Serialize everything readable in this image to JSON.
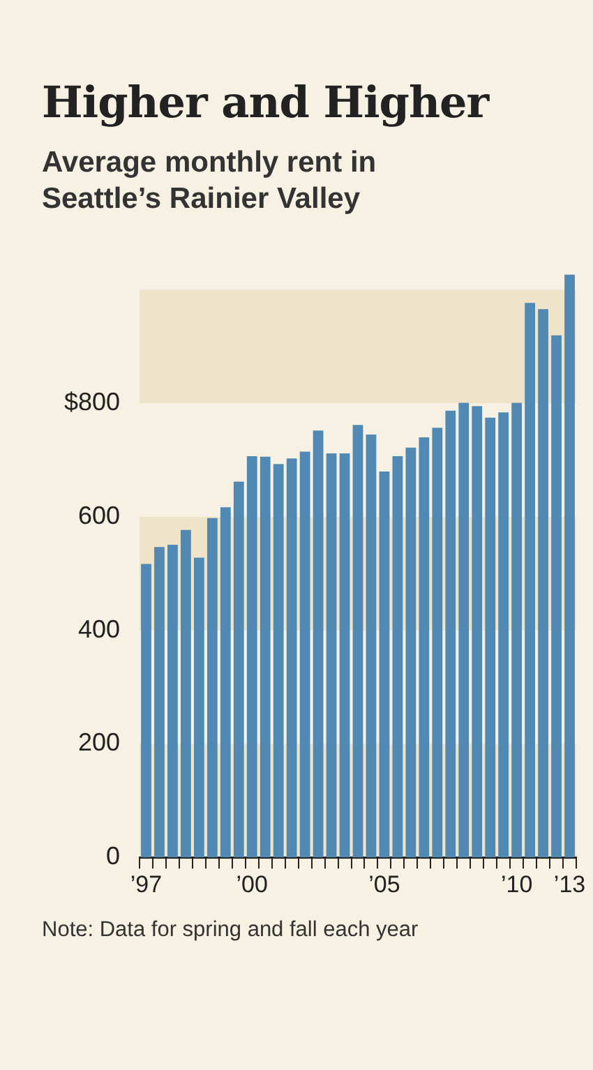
{
  "chart_data": {
    "type": "bar",
    "title": "Higher and Higher",
    "subtitle": "Average monthly rent in Seattle’s Rainier Valley",
    "categories": [
      "’97",
      null,
      null,
      null,
      null,
      null,
      null,
      null,
      "’00",
      null,
      null,
      null,
      null,
      null,
      null,
      null,
      null,
      null,
      "’05",
      null,
      null,
      null,
      null,
      null,
      null,
      null,
      null,
      null,
      "’10",
      null,
      null,
      null,
      "’13"
    ],
    "values": [
      517,
      547,
      551,
      577,
      528,
      598,
      617,
      662,
      707,
      706,
      693,
      703,
      715,
      752,
      712,
      712,
      762,
      745,
      680,
      707,
      722,
      740,
      757,
      787,
      801,
      795,
      775,
      784,
      801,
      977,
      966,
      920,
      1027
    ],
    "color": "#5089b4",
    "ylim": [
      0,
      1027
    ],
    "yticks": [
      0,
      200,
      400,
      600,
      {
        "value": 800,
        "label": "$800"
      }
    ],
    "bands": [
      {
        "axis": "y",
        "from": 0,
        "to": 200,
        "color": "#efe4c9"
      },
      {
        "axis": "y",
        "from": 400,
        "to": 600,
        "color": "#efe4c9"
      },
      {
        "axis": "y",
        "from": 800,
        "to": 1000,
        "color": "#efe4c9"
      }
    ],
    "grid": false,
    "legend": false,
    "annotations": [
      "Note: Data for spring and fall each year"
    ]
  }
}
